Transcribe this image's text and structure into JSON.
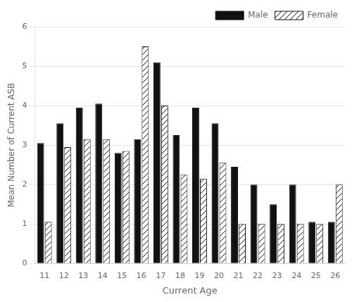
{
  "chart_data": {
    "type": "bar",
    "xlabel": "Current Age",
    "ylabel": "Mean Number of Current ASB",
    "categories": [
      11,
      12,
      13,
      14,
      15,
      16,
      17,
      18,
      19,
      20,
      21,
      22,
      23,
      24,
      25,
      26
    ],
    "series": [
      {
        "name": "Male",
        "color": "#111111",
        "values": [
          3.05,
          3.55,
          3.95,
          4.05,
          2.8,
          3.15,
          5.1,
          3.25,
          3.95,
          3.55,
          2.45,
          2.0,
          1.5,
          2.0,
          1.05,
          1.05
        ]
      },
      {
        "name": "Female",
        "color": "#ffffff",
        "values": [
          1.05,
          2.95,
          3.15,
          3.15,
          2.85,
          5.5,
          4.0,
          2.25,
          2.15,
          2.55,
          1.0,
          1.0,
          1.0,
          1.0,
          1.0,
          2.0
        ]
      }
    ],
    "ylim": [
      0,
      6
    ],
    "yticks": [
      0,
      1,
      2,
      3,
      4,
      5,
      6
    ],
    "grid": true,
    "legend": "upper right"
  }
}
